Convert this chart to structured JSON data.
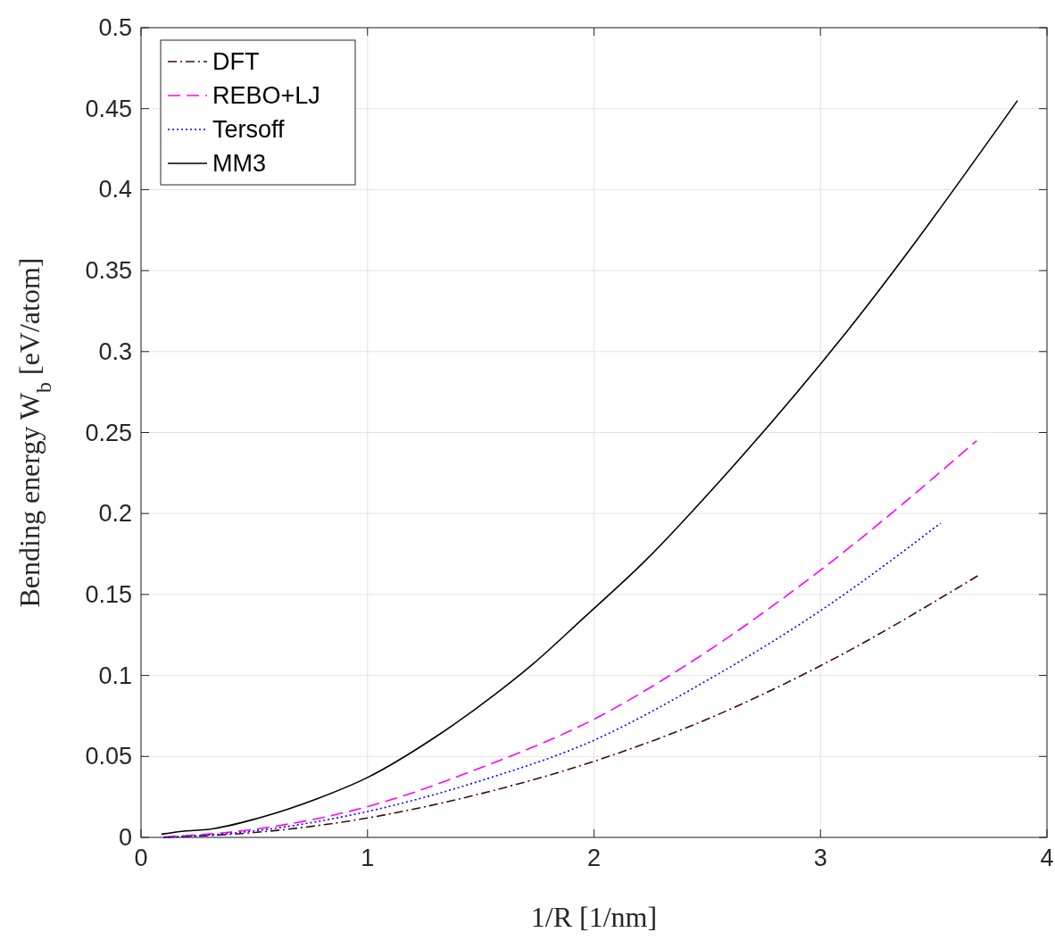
{
  "chart_data": {
    "type": "line",
    "xlabel": "1/R [1/nm]",
    "ylabel": "Bending energy W$_{b}$ [eV/atom]",
    "xlim": [
      0,
      4
    ],
    "xticks": [
      0,
      1,
      2,
      3,
      4
    ],
    "ylim": [
      0,
      0.5
    ],
    "yticks": [
      0,
      0.05,
      0.1,
      0.15,
      0.2,
      0.25,
      0.3,
      0.35,
      0.4,
      0.45,
      0.5
    ],
    "grid": true,
    "legend": "top left",
    "marker": "none",
    "series": [
      {
        "name": "DFT",
        "color": "#3d0a0a",
        "line_style": "dashdot",
        "x": [
          0.1,
          0.5,
          1,
          1.5,
          2,
          2.5,
          3,
          3.7
        ],
        "values": [
          0,
          0.003,
          0.012,
          0.027,
          0.047,
          0.073,
          0.106,
          0.162
        ]
      },
      {
        "name": "REBO+LJ",
        "color": "#ff00ff",
        "line_style": "dashed",
        "x": [
          0.1,
          0.5,
          1,
          1.5,
          2,
          2.48,
          3,
          3.69
        ],
        "values": [
          0.0003,
          0.005,
          0.019,
          0.043,
          0.073,
          0.113,
          0.165,
          0.245
        ]
      },
      {
        "name": "Tersoff",
        "color": "#0000ff",
        "line_style": "dotted",
        "x": [
          0.1,
          0.5,
          1,
          1.5,
          2,
          2.5,
          3,
          3.53
        ],
        "values": [
          0,
          0.004,
          0.016,
          0.035,
          0.06,
          0.097,
          0.14,
          0.194
        ]
      },
      {
        "name": "MM3",
        "color": "#000000",
        "line_style": "solid",
        "x": [
          0.09,
          0.2,
          0.3,
          0.52,
          0.78,
          1,
          1.3,
          1.56,
          1.73,
          1.95,
          2.22,
          2.6,
          3.12,
          3.87
        ],
        "values": [
          0.002,
          0.004,
          0.005,
          0.012,
          0.024,
          0.037,
          0.062,
          0.088,
          0.107,
          0.135,
          0.17,
          0.227,
          0.313,
          0.455
        ]
      }
    ]
  }
}
